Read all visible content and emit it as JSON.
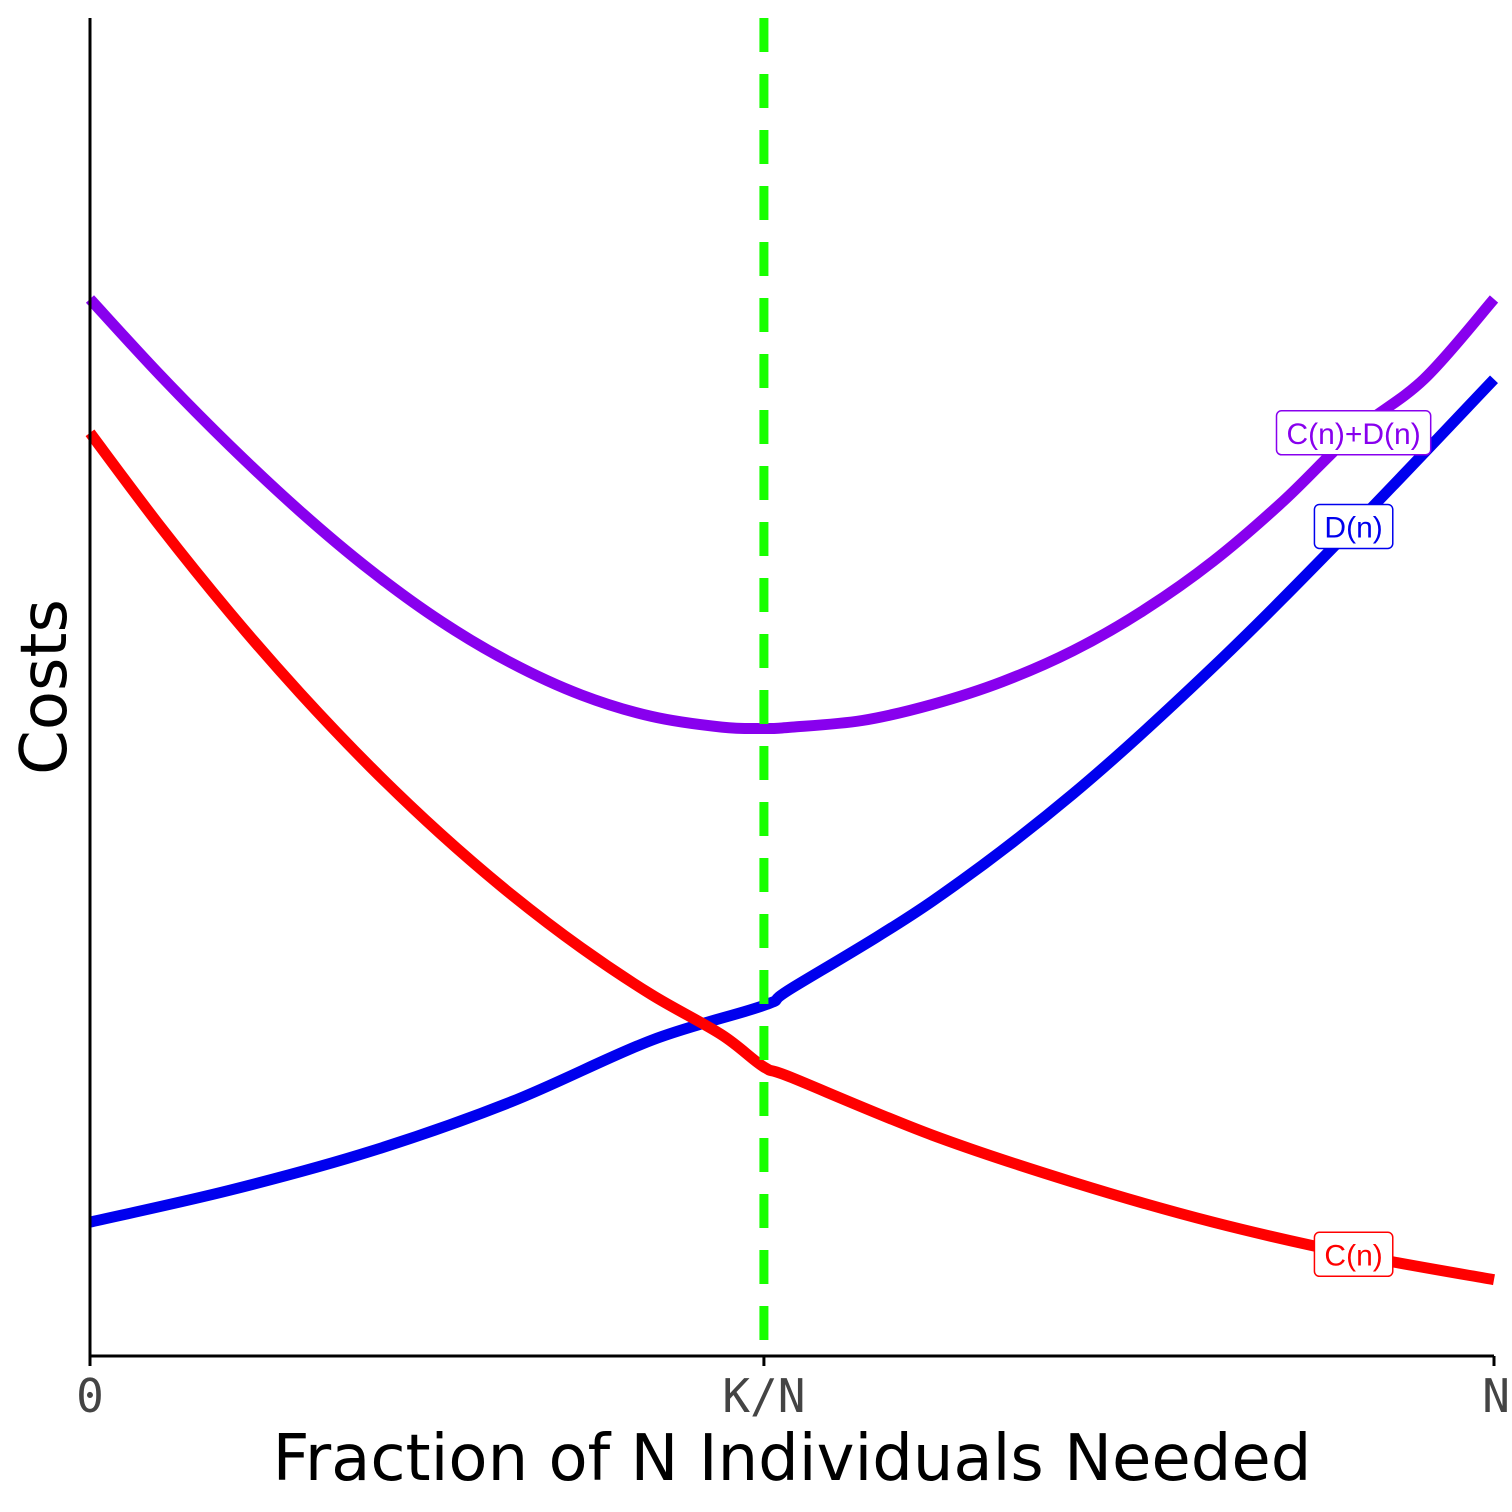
{
  "chart_data": {
    "type": "line",
    "xlabel": "Fraction of N Individuals Needed",
    "ylabel": "Costs",
    "xlim": [
      0,
      1
    ],
    "ylim": [
      0,
      1
    ],
    "x_ticks": [
      {
        "value": 0,
        "label": "0"
      },
      {
        "value": 0.48,
        "label": "K/N"
      },
      {
        "value": 1,
        "label": "N"
      }
    ],
    "grid": false,
    "legend": "direct labels on curves",
    "vline": {
      "x": 0.48,
      "color": "#18ff00",
      "style": "dashed"
    },
    "series": [
      {
        "name": "C(n)+D(n)",
        "color": "#8800ee",
        "x": [
          0,
          0.05,
          0.1,
          0.15,
          0.2,
          0.25,
          0.3,
          0.35,
          0.4,
          0.45,
          0.48,
          0.5,
          0.55,
          0.6,
          0.65,
          0.7,
          0.75,
          0.8,
          0.85,
          0.9,
          0.95,
          1
        ],
        "y": [
          0.79,
          0.733,
          0.68,
          0.631,
          0.587,
          0.549,
          0.518,
          0.494,
          0.478,
          0.47,
          0.469,
          0.47,
          0.475,
          0.487,
          0.504,
          0.527,
          0.557,
          0.594,
          0.639,
          0.69,
          0.73,
          0.79
        ]
      },
      {
        "name": "D(n)",
        "color": "#0000ee",
        "x": [
          0,
          0.1,
          0.2,
          0.3,
          0.4,
          0.48,
          0.5,
          0.6,
          0.7,
          0.8,
          0.9,
          1
        ],
        "y": [
          0.1,
          0.124,
          0.153,
          0.19,
          0.236,
          0.262,
          0.275,
          0.34,
          0.42,
          0.515,
          0.62,
          0.73
        ]
      },
      {
        "name": "C(n)",
        "color": "#ff0000",
        "x": [
          0,
          0.05,
          0.1,
          0.15,
          0.2,
          0.25,
          0.3,
          0.35,
          0.4,
          0.45,
          0.48,
          0.5,
          0.6,
          0.7,
          0.8,
          0.9,
          1
        ],
        "y": [
          0.69,
          0.62,
          0.555,
          0.495,
          0.44,
          0.39,
          0.345,
          0.305,
          0.27,
          0.24,
          0.216,
          0.208,
          0.165,
          0.13,
          0.1,
          0.076,
          0.057
        ]
      }
    ]
  }
}
